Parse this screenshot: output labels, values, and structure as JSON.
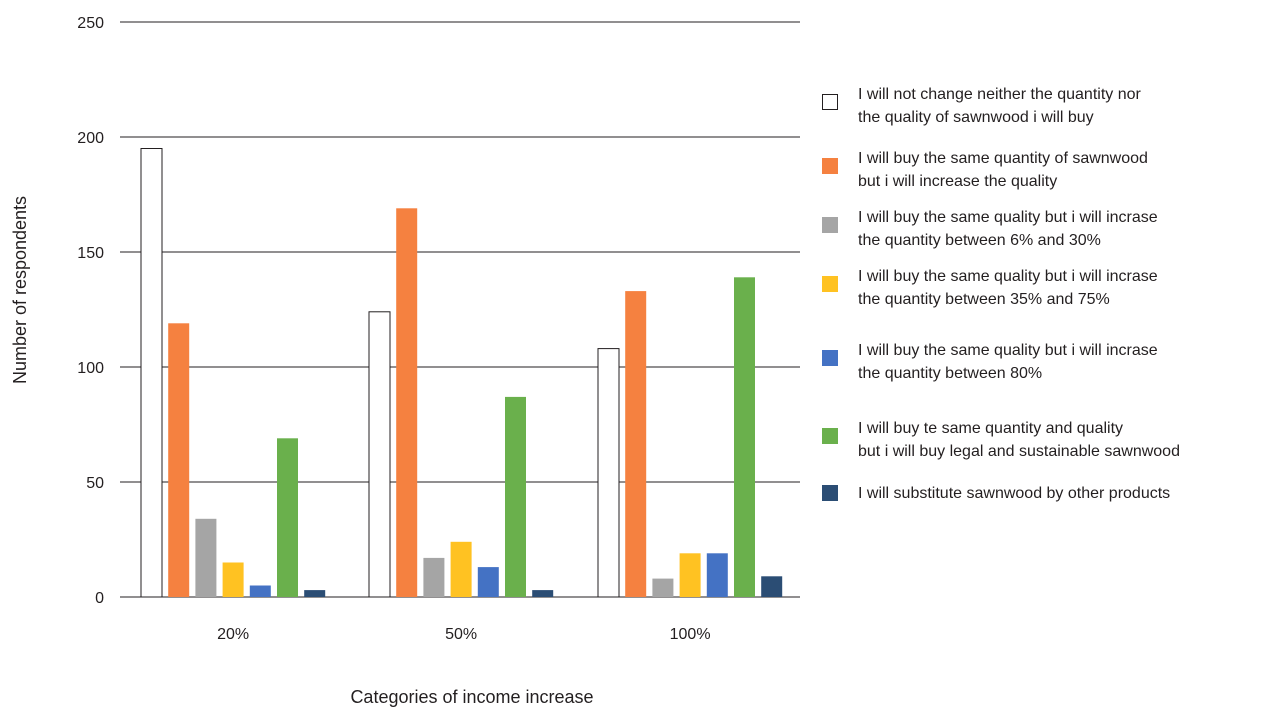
{
  "chart_data": {
    "type": "bar",
    "categories": [
      "20%",
      "50%",
      "100%"
    ],
    "xlabel": "Categories of income increase",
    "ylabel": "Number of respondents",
    "ylim": [
      0,
      250
    ],
    "yticks": [
      0,
      50,
      100,
      150,
      200,
      250
    ],
    "grid": true,
    "legend_position": "right",
    "series": [
      {
        "name": "I will not change neither the quantity nor\nthe quality of sawnwood i will buy",
        "color": "#ffffff",
        "stroke": "#231f20",
        "values": [
          195,
          124,
          108
        ]
      },
      {
        "name": "I will buy the same quantity of sawnwood\nbut i will increase the quality",
        "color": "#f58140",
        "values": [
          119,
          169,
          133
        ]
      },
      {
        "name": "I will buy the same quality but i will incrase\nthe quantity between  6% and 30%",
        "color": "#a5a5a5",
        "values": [
          34,
          17,
          8
        ]
      },
      {
        "name": "I will buy the same quality but i will incrase\nthe quantity between 35% and 75%",
        "color": "#ffc222",
        "values": [
          15,
          24,
          19
        ]
      },
      {
        "name": "I will buy the same quality but i will incrase\nthe quantity between 80%",
        "color": "#4472c4",
        "values": [
          5,
          13,
          19
        ]
      },
      {
        "name": "I will buy te same quantity and quality\nbut i will buy legal and sustainable sawnwood",
        "color": "#6ab04c",
        "values": [
          69,
          87,
          139
        ]
      },
      {
        "name": "I will substitute sawnwood by other products",
        "color": "#2b4d74",
        "values": [
          3,
          3,
          9
        ]
      }
    ]
  }
}
